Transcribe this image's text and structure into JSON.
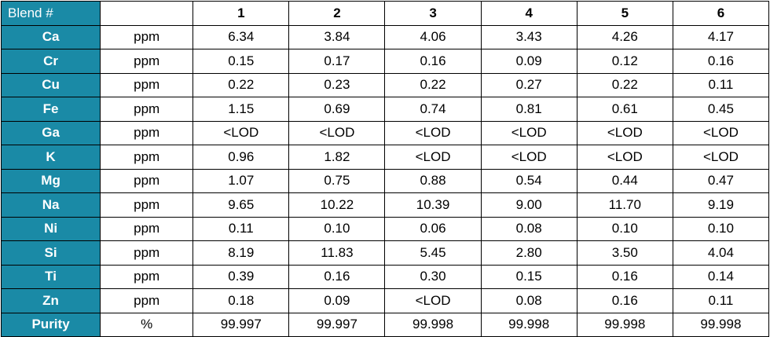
{
  "table": {
    "corner": "Blend #",
    "columns": [
      "1",
      "2",
      "3",
      "4",
      "5",
      "6"
    ],
    "rows": [
      {
        "label": "Ca",
        "unit": "ppm",
        "values": [
          "6.34",
          "3.84",
          "4.06",
          "3.43",
          "4.26",
          "4.17"
        ]
      },
      {
        "label": "Cr",
        "unit": "ppm",
        "values": [
          "0.15",
          "0.17",
          "0.16",
          "0.09",
          "0.12",
          "0.16"
        ]
      },
      {
        "label": "Cu",
        "unit": "ppm",
        "values": [
          "0.22",
          "0.23",
          "0.22",
          "0.27",
          "0.22",
          "0.11"
        ]
      },
      {
        "label": "Fe",
        "unit": "ppm",
        "values": [
          "1.15",
          "0.69",
          "0.74",
          "0.81",
          "0.61",
          "0.45"
        ]
      },
      {
        "label": "Ga",
        "unit": "ppm",
        "values": [
          "<LOD",
          "<LOD",
          "<LOD",
          "<LOD",
          "<LOD",
          "<LOD"
        ]
      },
      {
        "label": "K",
        "unit": "ppm",
        "values": [
          "0.96",
          "1.82",
          "<LOD",
          "<LOD",
          "<LOD",
          "<LOD"
        ]
      },
      {
        "label": "Mg",
        "unit": "ppm",
        "values": [
          "1.07",
          "0.75",
          "0.88",
          "0.54",
          "0.44",
          "0.47"
        ]
      },
      {
        "label": "Na",
        "unit": "ppm",
        "values": [
          "9.65",
          "10.22",
          "10.39",
          "9.00",
          "11.70",
          "9.19"
        ]
      },
      {
        "label": "Ni",
        "unit": "ppm",
        "values": [
          "0.11",
          "0.10",
          "0.06",
          "0.08",
          "0.10",
          "0.10"
        ]
      },
      {
        "label": "Si",
        "unit": "ppm",
        "values": [
          "8.19",
          "11.83",
          "5.45",
          "2.80",
          "3.50",
          "4.04"
        ]
      },
      {
        "label": "Ti",
        "unit": "ppm",
        "values": [
          "0.39",
          "0.16",
          "0.30",
          "0.15",
          "0.16",
          "0.14"
        ]
      },
      {
        "label": "Zn",
        "unit": "ppm",
        "values": [
          "0.18",
          "0.09",
          "<LOD",
          "0.08",
          "0.16",
          "0.11"
        ]
      },
      {
        "label": "Purity",
        "unit": "%",
        "values": [
          "99.997",
          "99.997",
          "99.998",
          "99.998",
          "99.998",
          "99.998"
        ]
      }
    ]
  }
}
